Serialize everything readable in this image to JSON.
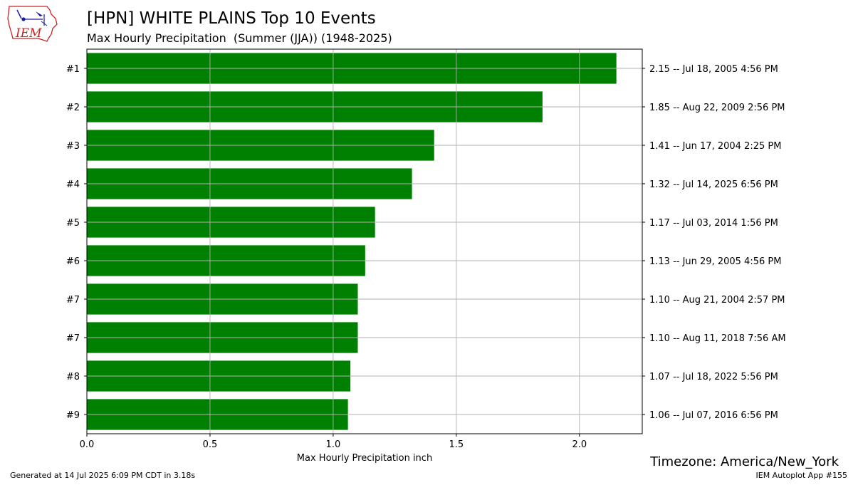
{
  "header": {
    "title": "[HPN] WHITE PLAINS Top 10 Events",
    "subtitle": "Max Hourly Precipitation  (Summer (JJA)) (1948-2025)"
  },
  "logo": {
    "text": "IEM",
    "icon": "iowa-map-weather-icon",
    "color": "#cc2222",
    "accent": "#1a1aa6"
  },
  "footer": {
    "timezone": "Timezone: America/New_York",
    "generated": "Generated at 14 Jul 2025 6:09 PM CDT in 3.18s",
    "app": "IEM Autoplot App #155"
  },
  "chart_data": {
    "type": "bar",
    "orientation": "horizontal",
    "bar_color": "#008000",
    "grid": true,
    "xlabel": "Max Hourly Precipitation inch",
    "xlim": [
      0,
      2.255
    ],
    "xticks": [
      "0.0",
      "0.5",
      "1.0",
      "1.5",
      "2.0"
    ],
    "xtick_values": [
      0.0,
      0.5,
      1.0,
      1.5,
      2.0
    ],
    "categories": [
      "#1",
      "#2",
      "#3",
      "#4",
      "#5",
      "#6",
      "#7",
      "#7",
      "#8",
      "#9"
    ],
    "values": [
      2.15,
      1.85,
      1.41,
      1.32,
      1.17,
      1.13,
      1.1,
      1.1,
      1.07,
      1.06
    ],
    "right_labels": [
      "2.15 -- Jul 18, 2005 4:56 PM",
      "1.85 -- Aug 22, 2009 2:56 PM",
      "1.41 -- Jun 17, 2004 2:25 PM",
      "1.32 -- Jul 14, 2025 6:56 PM",
      "1.17 -- Jul 03, 2014 1:56 PM",
      "1.13 -- Jun 29, 2005 4:56 PM",
      "1.10 -- Aug 21, 2004 2:57 PM",
      "1.10 -- Aug 11, 2018 7:56 AM",
      "1.07 -- Jul 18, 2022 5:56 PM",
      "1.06 -- Jul 07, 2016 6:56 PM"
    ]
  }
}
